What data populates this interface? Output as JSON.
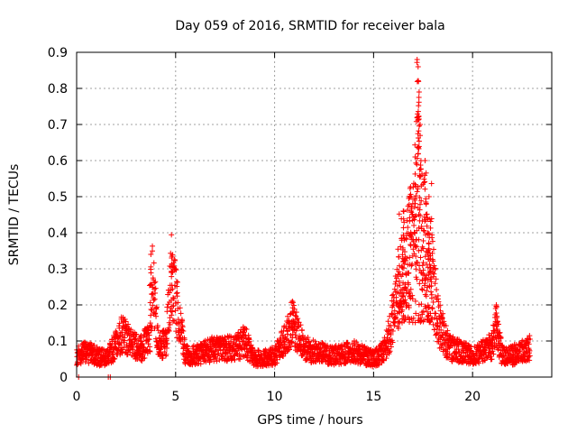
{
  "chart_data": {
    "type": "scatter",
    "title": "Day 059 of 2016, SRMTID for receiver bala",
    "xlabel": "GPS time / hours",
    "ylabel": "SRMTID / TECUs",
    "xlim": [
      0,
      24
    ],
    "ylim": [
      0,
      0.9
    ],
    "xticks": [
      0,
      5,
      10,
      15,
      20
    ],
    "yticks": [
      0,
      0.1,
      0.2,
      0.3,
      0.4,
      0.5,
      0.6,
      0.7,
      0.8,
      0.9
    ],
    "xtick_labels": [
      "0",
      "5",
      "10",
      "15",
      "20"
    ],
    "ytick_labels": [
      "0",
      "0.1",
      "0.2",
      "0.3",
      "0.4",
      "0.5",
      "0.6",
      "0.7",
      "0.8",
      "0.9"
    ],
    "grid": true,
    "marker": "+",
    "color": "#ff0000",
    "series": [
      {
        "name": "SRMTID",
        "profile_x": [
          0,
          0.5,
          1.0,
          1.5,
          2.0,
          2.3,
          2.8,
          3.3,
          3.7,
          3.85,
          4.1,
          4.5,
          4.8,
          5.0,
          5.3,
          5.5,
          6.0,
          7.0,
          8.0,
          8.5,
          9.0,
          10.0,
          10.5,
          10.9,
          11.5,
          12.0,
          13.0,
          14.0,
          15.0,
          15.5,
          15.8,
          16.2,
          16.6,
          17.0,
          17.25,
          17.6,
          17.9,
          18.3,
          18.8,
          19.5,
          20.0,
          20.5,
          21.0,
          21.2,
          21.5,
          22.0,
          22.5,
          22.9
        ],
        "profile_y": [
          0.06,
          0.07,
          0.06,
          0.05,
          0.09,
          0.12,
          0.09,
          0.08,
          0.12,
          0.28,
          0.1,
          0.09,
          0.28,
          0.22,
          0.12,
          0.06,
          0.06,
          0.08,
          0.08,
          0.1,
          0.05,
          0.06,
          0.1,
          0.15,
          0.08,
          0.07,
          0.06,
          0.07,
          0.05,
          0.07,
          0.12,
          0.22,
          0.3,
          0.4,
          0.55,
          0.35,
          0.3,
          0.15,
          0.08,
          0.07,
          0.06,
          0.07,
          0.09,
          0.14,
          0.06,
          0.06,
          0.07,
          0.08
        ],
        "peaks": [
          {
            "x": 3.75,
            "y": 0.34
          },
          {
            "x": 4.8,
            "y": 0.33
          },
          {
            "x": 10.9,
            "y": 0.21
          },
          {
            "x": 16.5,
            "y": 0.46
          },
          {
            "x": 16.9,
            "y": 0.46
          },
          {
            "x": 17.1,
            "y": 0.61
          },
          {
            "x": 17.2,
            "y": 0.88
          },
          {
            "x": 17.25,
            "y": 0.86
          },
          {
            "x": 17.3,
            "y": 0.79
          },
          {
            "x": 17.2,
            "y": 0.72
          },
          {
            "x": 17.35,
            "y": 0.7
          },
          {
            "x": 17.6,
            "y": 0.6
          },
          {
            "x": 17.8,
            "y": 0.5
          },
          {
            "x": 21.2,
            "y": 0.2
          }
        ],
        "outliers_low": [
          {
            "x": 0.1,
            "y": 0.0
          },
          {
            "x": 1.6,
            "y": 0.0
          },
          {
            "x": 1.7,
            "y": 0.0
          }
        ]
      }
    ]
  }
}
